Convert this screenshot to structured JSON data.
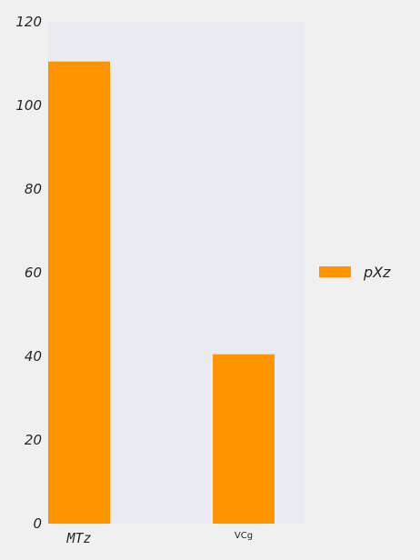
{
  "chart_data": {
    "type": "bar",
    "categories": [
      "MTz",
      "VCg"
    ],
    "series": [
      {
        "name": "pXz",
        "values": [
          110.5,
          40.5
        ],
        "color": "#ff9400"
      }
    ],
    "ylim": [
      0,
      120
    ],
    "yticks": [
      0,
      20,
      40,
      60,
      80,
      100,
      120
    ],
    "title": "",
    "xlabel": "",
    "ylabel": "",
    "grid": false,
    "legend": "right",
    "plot_background": "#eaeaf2"
  }
}
